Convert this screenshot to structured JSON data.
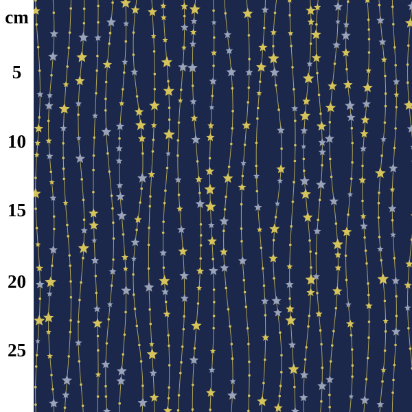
{
  "ruler": {
    "unit": "cm",
    "labels": [
      "5",
      "10",
      "15",
      "20",
      "25"
    ]
  },
  "fabric": {
    "background_color": "#1b284c",
    "gold_color": "#d6c45a",
    "silver_color": "#9aa3b8",
    "motifs": [
      "star-icon",
      "dot"
    ]
  }
}
